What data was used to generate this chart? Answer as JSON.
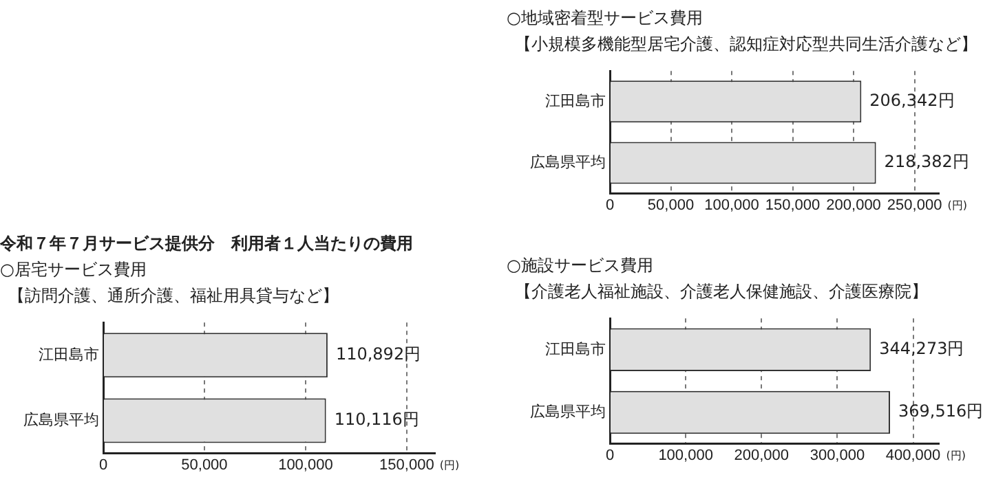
{
  "chart_data": [
    {
      "type": "bar",
      "orientation": "horizontal",
      "title": "○地域密着型サービス費用",
      "subtitle": "【小規模多機能型居宅介護、認知症対応型共同生活介護など】",
      "categories": [
        "江田島市",
        "広島県平均"
      ],
      "values": [
        206342,
        218382
      ],
      "value_labels": [
        "206,342円",
        "218,382円"
      ],
      "color": "#e0e0e0",
      "xlim": [
        0,
        270000
      ],
      "xticks": [
        {
          "value": 0,
          "label": "0"
        },
        {
          "value": 50000,
          "label": "50,000"
        },
        {
          "value": 100000,
          "label": "100,000"
        },
        {
          "value": 150000,
          "label": "150,000"
        },
        {
          "value": 200000,
          "label": "200,000"
        },
        {
          "value": 250000,
          "label": "250,000"
        }
      ],
      "xlabel": "(円)",
      "grid": "x"
    },
    {
      "type": "bar",
      "orientation": "horizontal",
      "title": "令和７年７月サービス提供分　利用者１人当たりの費用",
      "subtitle": "○居宅サービス費用",
      "annotations": [
        "【訪問介護、通所介護、福祉用具貸与など】"
      ],
      "categories": [
        "江田島市",
        "広島県平均"
      ],
      "values": [
        110892,
        110116
      ],
      "value_labels": [
        "110,892円",
        "110,116円"
      ],
      "color": "#e0e0e0",
      "xlim": [
        0,
        164000
      ],
      "xticks": [
        {
          "value": 0,
          "label": "0"
        },
        {
          "value": 50000,
          "label": "50,000"
        },
        {
          "value": 100000,
          "label": "100,000"
        },
        {
          "value": 150000,
          "label": "150,000"
        }
      ],
      "xlabel": "(円)",
      "grid": "x"
    },
    {
      "type": "bar",
      "orientation": "horizontal",
      "title": "○施設サービス費用",
      "subtitle": "【介護老人福祉施設、介護老人保健施設、介護医療院】",
      "categories": [
        "江田島市",
        "広島県平均"
      ],
      "values": [
        344273,
        369516
      ],
      "value_labels": [
        "344,273円",
        "369,516円"
      ],
      "color": "#e0e0e0",
      "xlim": [
        0,
        434000
      ],
      "xticks": [
        {
          "value": 0,
          "label": "0"
        },
        {
          "value": 100000,
          "label": "100,000"
        },
        {
          "value": 200000,
          "label": "200,000"
        },
        {
          "value": 300000,
          "label": "300,000"
        },
        {
          "value": 400000,
          "label": "400,000"
        }
      ],
      "xlabel": "(円)",
      "grid": "x"
    }
  ]
}
